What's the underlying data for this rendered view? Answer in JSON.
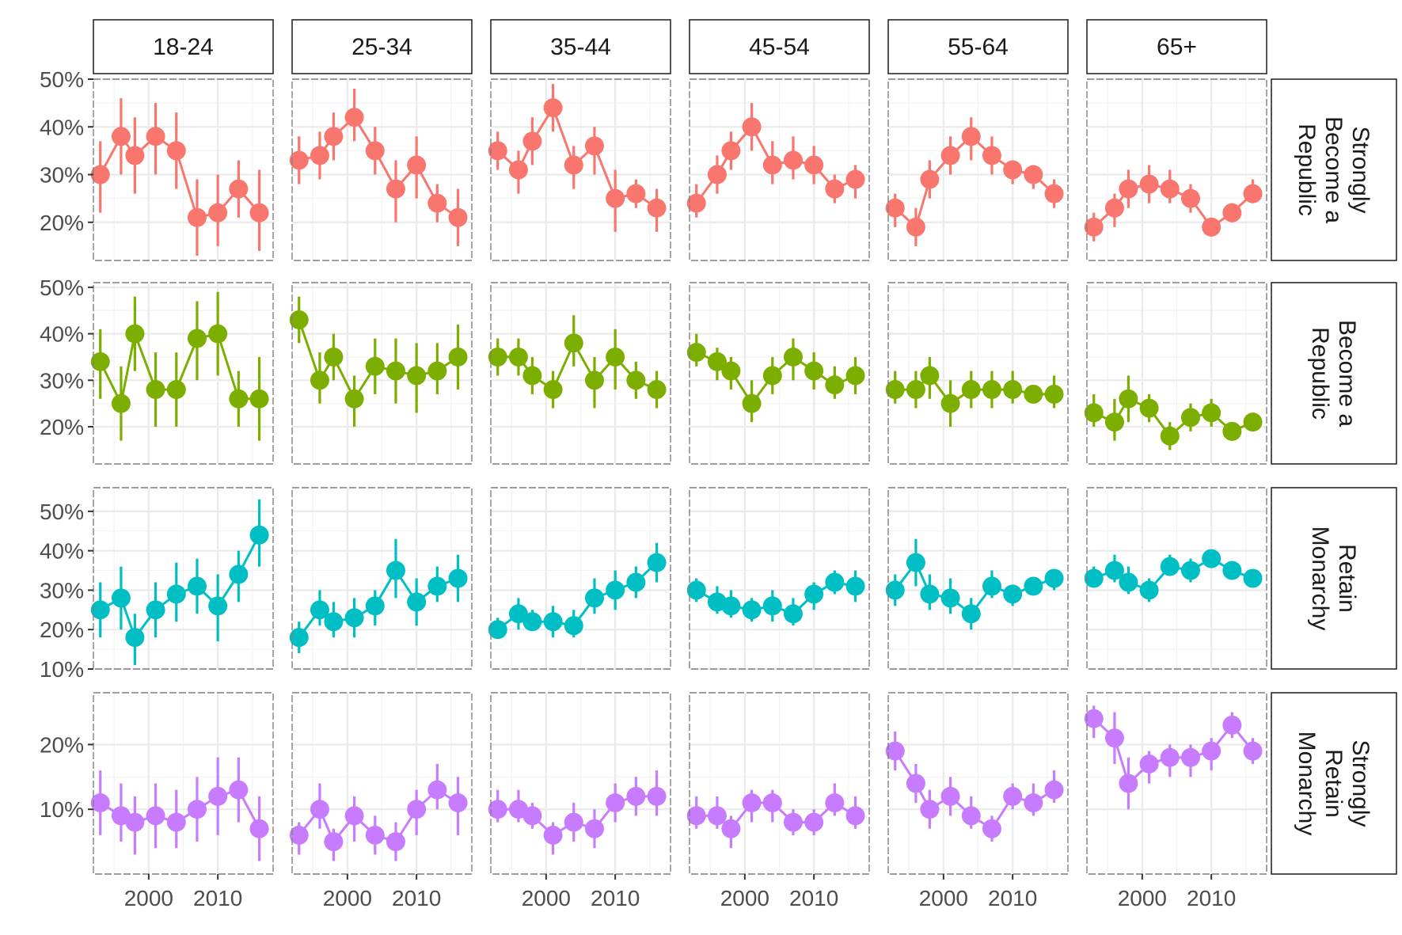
{
  "chart_data": {
    "type": "line",
    "facet_columns": [
      "18-24",
      "25-34",
      "35-44",
      "45-54",
      "55-64",
      "65+"
    ],
    "facet_rows": [
      "Strongly\nBecome a\nRepublic",
      "Become a\nRepublic",
      "Retain\nMonarchy",
      "Strongly\nRetain\nMonarchy"
    ],
    "series_colors": [
      "#F8766D",
      "#7CAE00",
      "#00BFC4",
      "#C77CFF"
    ],
    "xlim": [
      1992,
      2018
    ],
    "x_ticks": [
      2000,
      2010
    ],
    "x_tick_labels": [
      "2000",
      "2010"
    ],
    "years": [
      1993,
      1996,
      1998,
      2001,
      2004,
      2007,
      2010,
      2013,
      2016
    ],
    "scale": "free_y",
    "row_scales": [
      {
        "ylim": [
          12,
          50
        ],
        "ticks": [
          20,
          30,
          40,
          50
        ],
        "tick_labels": [
          "20%",
          "30%",
          "40%",
          "50%"
        ]
      },
      {
        "ylim": [
          12,
          51
        ],
        "ticks": [
          20,
          30,
          40,
          50
        ],
        "tick_labels": [
          "20%",
          "30%",
          "40%",
          "50%"
        ]
      },
      {
        "ylim": [
          10,
          56
        ],
        "ticks": [
          10,
          20,
          30,
          40,
          50
        ],
        "tick_labels": [
          "10%",
          "20%",
          "30%",
          "40%",
          "50%"
        ]
      },
      {
        "ylim": [
          0,
          28
        ],
        "ticks": [
          10,
          20
        ],
        "tick_labels": [
          "10%",
          "20%"
        ]
      }
    ],
    "panels": [
      [
        {
          "values": [
            30,
            38,
            34,
            38,
            35,
            21,
            22,
            27,
            22
          ],
          "lower": [
            22,
            30,
            26,
            30,
            27,
            13,
            15,
            21,
            14
          ],
          "upper": [
            37,
            46,
            42,
            45,
            43,
            29,
            30,
            33,
            31
          ]
        },
        {
          "values": [
            34,
            25,
            40,
            28,
            28,
            39,
            40,
            26,
            26
          ],
          "lower": [
            26,
            17,
            32,
            20,
            20,
            30,
            31,
            20,
            17
          ],
          "upper": [
            41,
            33,
            48,
            36,
            36,
            47,
            49,
            32,
            35
          ]
        },
        {
          "values": [
            25,
            28,
            18,
            25,
            29,
            31,
            26,
            34,
            44
          ],
          "lower": [
            18,
            20,
            11,
            18,
            22,
            24,
            17,
            27,
            36
          ],
          "upper": [
            32,
            36,
            24,
            32,
            37,
            38,
            34,
            40,
            53
          ]
        },
        {
          "values": [
            11,
            9,
            8,
            9,
            8,
            10,
            12,
            13,
            7
          ],
          "lower": [
            6,
            5,
            3,
            4,
            4,
            5,
            6,
            8,
            2
          ],
          "upper": [
            16,
            14,
            12,
            14,
            13,
            15,
            18,
            18,
            12
          ]
        }
      ],
      [
        {
          "values": [
            33,
            34,
            38,
            42,
            35,
            27,
            32,
            24,
            21
          ],
          "lower": [
            28,
            29,
            33,
            37,
            30,
            20,
            25,
            20,
            15
          ],
          "upper": [
            38,
            39,
            43,
            48,
            40,
            33,
            38,
            28,
            27
          ]
        },
        {
          "values": [
            43,
            30,
            35,
            26,
            33,
            32,
            31,
            32,
            35
          ],
          "lower": [
            38,
            25,
            30,
            20,
            27,
            25,
            23,
            27,
            28
          ],
          "upper": [
            48,
            36,
            40,
            31,
            39,
            39,
            38,
            38,
            42
          ]
        },
        {
          "values": [
            18,
            25,
            22,
            23,
            26,
            35,
            27,
            31,
            33
          ],
          "lower": [
            14,
            21,
            18,
            18,
            21,
            28,
            21,
            27,
            27
          ],
          "upper": [
            22,
            30,
            27,
            28,
            30,
            43,
            33,
            36,
            39
          ]
        },
        {
          "values": [
            6,
            10,
            5,
            9,
            6,
            5,
            10,
            13,
            11
          ],
          "lower": [
            3,
            7,
            2,
            5,
            3,
            2,
            6,
            10,
            6
          ],
          "upper": [
            8,
            14,
            7,
            12,
            9,
            8,
            13,
            17,
            15
          ]
        }
      ],
      [
        {
          "values": [
            35,
            31,
            37,
            44,
            32,
            36,
            25,
            26,
            23
          ],
          "lower": [
            31,
            26,
            32,
            39,
            27,
            30,
            18,
            23,
            18
          ],
          "upper": [
            39,
            35,
            42,
            49,
            36,
            40,
            31,
            29,
            27
          ]
        },
        {
          "values": [
            35,
            35,
            31,
            28,
            38,
            30,
            35,
            30,
            28
          ],
          "lower": [
            31,
            31,
            27,
            24,
            33,
            24,
            28,
            26,
            24
          ],
          "upper": [
            39,
            39,
            35,
            32,
            44,
            35,
            41,
            34,
            32
          ]
        },
        {
          "values": [
            20,
            24,
            22,
            22,
            21,
            28,
            30,
            32,
            37
          ],
          "lower": [
            18,
            20,
            20,
            18,
            18,
            24,
            25,
            28,
            32
          ],
          "upper": [
            23,
            28,
            25,
            26,
            25,
            33,
            35,
            36,
            42
          ]
        },
        {
          "values": [
            10,
            10,
            9,
            6,
            8,
            7,
            11,
            12,
            12
          ],
          "lower": [
            8,
            8,
            7,
            3,
            5,
            4,
            8,
            9,
            9
          ],
          "upper": [
            13,
            13,
            11,
            8,
            11,
            10,
            14,
            15,
            16
          ]
        }
      ],
      [
        {
          "values": [
            24,
            30,
            35,
            40,
            32,
            33,
            32,
            27,
            29
          ],
          "lower": [
            21,
            26,
            31,
            35,
            28,
            29,
            28,
            24,
            25
          ],
          "upper": [
            28,
            34,
            39,
            45,
            37,
            38,
            36,
            30,
            32
          ]
        },
        {
          "values": [
            36,
            34,
            32,
            25,
            31,
            35,
            32,
            29,
            31
          ],
          "lower": [
            33,
            30,
            28,
            21,
            27,
            30,
            28,
            26,
            27
          ],
          "upper": [
            40,
            37,
            35,
            30,
            35,
            39,
            36,
            33,
            35
          ]
        },
        {
          "values": [
            30,
            27,
            26,
            25,
            26,
            24,
            29,
            32,
            31
          ],
          "lower": [
            27,
            24,
            23,
            22,
            22,
            21,
            25,
            29,
            27
          ],
          "upper": [
            33,
            31,
            30,
            28,
            30,
            28,
            32,
            35,
            35
          ]
        },
        {
          "values": [
            9,
            9,
            7,
            11,
            11,
            8,
            8,
            11,
            9
          ],
          "lower": [
            7,
            7,
            4,
            8,
            8,
            6,
            6,
            9,
            7
          ],
          "upper": [
            12,
            12,
            9,
            13,
            13,
            10,
            10,
            14,
            12
          ]
        }
      ],
      [
        {
          "values": [
            23,
            19,
            29,
            34,
            38,
            34,
            31,
            30,
            26
          ],
          "lower": [
            19,
            15,
            25,
            30,
            33,
            30,
            28,
            27,
            23
          ],
          "upper": [
            26,
            23,
            33,
            38,
            42,
            38,
            33,
            32,
            29
          ]
        },
        {
          "values": [
            28,
            28,
            31,
            25,
            28,
            28,
            28,
            27,
            27
          ],
          "lower": [
            25,
            24,
            26,
            20,
            24,
            24,
            25,
            25,
            24
          ],
          "upper": [
            32,
            32,
            35,
            30,
            32,
            32,
            32,
            29,
            31
          ]
        },
        {
          "values": [
            30,
            37,
            29,
            28,
            24,
            31,
            29,
            31,
            33
          ],
          "lower": [
            26,
            31,
            25,
            24,
            20,
            28,
            26,
            29,
            30
          ],
          "upper": [
            34,
            43,
            34,
            33,
            28,
            35,
            31,
            33,
            35
          ]
        },
        {
          "values": [
            19,
            14,
            10,
            12,
            9,
            7,
            12,
            11,
            13
          ],
          "lower": [
            16,
            11,
            7,
            9,
            7,
            5,
            10,
            9,
            11
          ],
          "upper": [
            22,
            17,
            13,
            15,
            12,
            9,
            14,
            14,
            16
          ]
        }
      ],
      [
        {
          "values": [
            19,
            23,
            27,
            28,
            27,
            25,
            19,
            22,
            26
          ],
          "lower": [
            16,
            19,
            23,
            24,
            24,
            22,
            17,
            20,
            24
          ],
          "upper": [
            22,
            26,
            31,
            32,
            31,
            28,
            21,
            24,
            29
          ]
        },
        {
          "values": [
            23,
            21,
            26,
            24,
            18,
            22,
            23,
            19,
            21
          ],
          "lower": [
            20,
            17,
            21,
            21,
            15,
            19,
            20,
            17,
            19
          ],
          "upper": [
            27,
            26,
            31,
            27,
            21,
            25,
            26,
            21,
            23
          ]
        },
        {
          "values": [
            33,
            35,
            32,
            30,
            36,
            35,
            38,
            35,
            33
          ],
          "lower": [
            31,
            32,
            29,
            27,
            34,
            32,
            36,
            34,
            32
          ],
          "upper": [
            36,
            39,
            36,
            33,
            39,
            38,
            40,
            37,
            35
          ]
        },
        {
          "values": [
            24,
            21,
            14,
            17,
            18,
            18,
            19,
            23,
            19
          ],
          "lower": [
            21,
            17,
            10,
            14,
            15,
            15,
            16,
            21,
            17
          ],
          "upper": [
            26,
            25,
            18,
            19,
            20,
            20,
            21,
            25,
            21
          ]
        }
      ]
    ]
  }
}
